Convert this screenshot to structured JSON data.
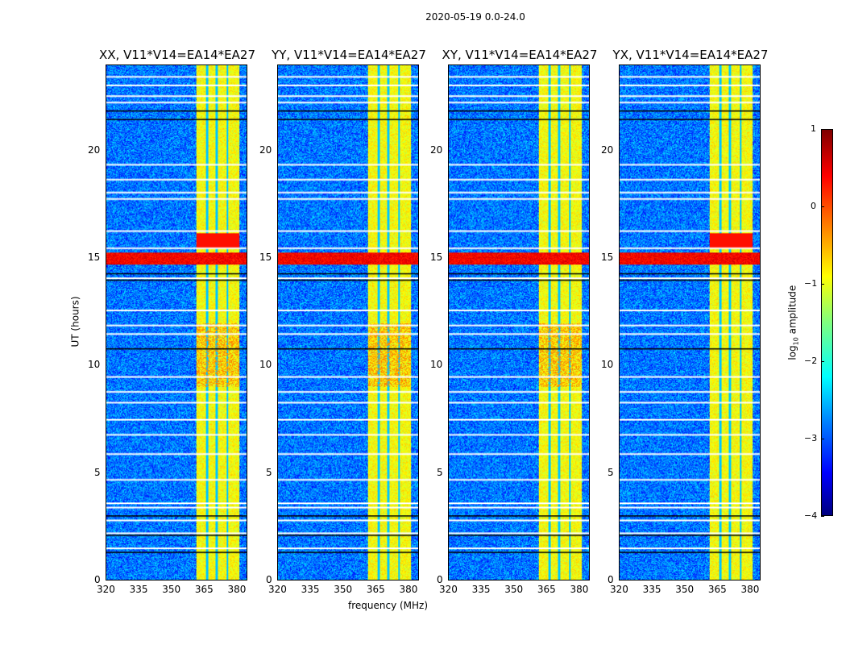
{
  "figure": {
    "suptitle": "2020-05-19 0.0-24.0",
    "xlabel": "frequency (MHz)",
    "ylabel": "UT (hours)",
    "colorbar_label": "log10 amplitude"
  },
  "chart_data": {
    "type": "heatmap",
    "title": "2020-05-19 0.0-24.0",
    "panels": [
      {
        "title": "XX, V11*V14=EA14*EA27"
      },
      {
        "title": "YY, V11*V14=EA14*EA27"
      },
      {
        "title": "XY, V11*V14=EA14*EA27"
      },
      {
        "title": "YX, V11*V14=EA14*EA27"
      }
    ],
    "xlabel": "frequency (MHz)",
    "ylabel": "UT (hours)",
    "xlim": [
      320,
      385
    ],
    "ylim": [
      0,
      24
    ],
    "xticks": [
      "320",
      "335",
      "350",
      "365",
      "380"
    ],
    "yticks": [
      "0",
      "5",
      "10",
      "15",
      "20"
    ],
    "colorbar": {
      "label": "log10 amplitude",
      "range": [
        -4,
        1
      ],
      "ticks": [
        "1",
        "0",
        "−1",
        "−2",
        "−3",
        "−4"
      ],
      "colormap": "jet"
    },
    "background_level": -2.8,
    "rfi_band_mhz": [
      361.5,
      381.5
    ],
    "rfi_band_level": -0.9,
    "strong_rfi_hours": [
      14.7,
      15.3
    ],
    "strong_rfi_level": 0.4,
    "flagged_rows_hours": [
      23.5,
      23.1,
      22.6,
      22.3,
      19.4,
      18.7,
      18.1,
      17.8,
      16.3,
      15.5,
      14.1,
      12.6,
      11.9,
      11.5,
      9.5,
      8.8,
      8.3,
      7.5,
      6.8,
      5.9,
      4.7,
      3.6,
      3.4,
      2.8,
      2.2,
      1.5
    ],
    "blank_rows_hours": [
      21.9,
      21.5,
      14.3,
      14.0,
      10.8,
      3.0,
      2.1,
      1.3
    ]
  }
}
